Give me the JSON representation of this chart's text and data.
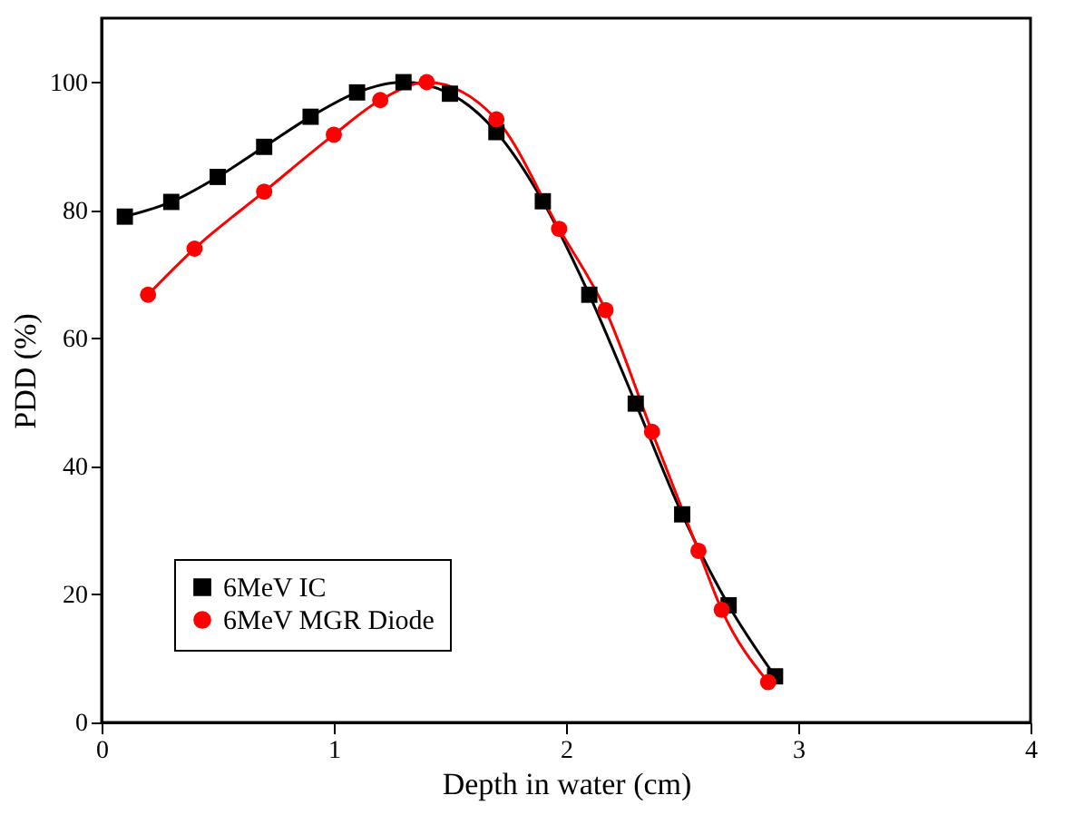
{
  "chart_data": {
    "type": "line",
    "xlabel": "Depth in water (cm)",
    "ylabel": "PDD (%)",
    "xlim": [
      0,
      4
    ],
    "xticks": [
      0,
      1,
      2,
      3,
      4
    ],
    "ylim": [
      0,
      110
    ],
    "yticks": [
      0,
      20,
      40,
      60,
      80,
      100
    ],
    "grid": false,
    "legend": "bottom left",
    "line_style": "solid",
    "series": [
      {
        "name": "6MeV IC",
        "color": "#000000",
        "marker": "square",
        "x": [
          0.1,
          0.3,
          0.5,
          0.7,
          0.9,
          1.1,
          1.3,
          1.5,
          1.7,
          1.9,
          2.1,
          2.3,
          2.5,
          2.7,
          2.9
        ],
        "values": [
          79,
          81.3,
          85.2,
          89.9,
          94.6,
          98.4,
          100,
          98.2,
          92.2,
          81.4,
          66.8,
          49.8,
          32.5,
          18.3,
          7.2
        ]
      },
      {
        "name": "6MeV MGR Diode",
        "color": "#ff0000",
        "marker": "circle",
        "x": [
          0.2,
          0.4,
          0.7,
          1.0,
          1.2,
          1.4,
          1.7,
          1.97,
          2.17,
          2.37,
          2.57,
          2.67,
          2.87
        ],
        "values": [
          66.8,
          74,
          82.9,
          91.8,
          97.2,
          100,
          94.2,
          77.1,
          64.4,
          45.4,
          26.8,
          17.6,
          6.3
        ]
      }
    ]
  }
}
